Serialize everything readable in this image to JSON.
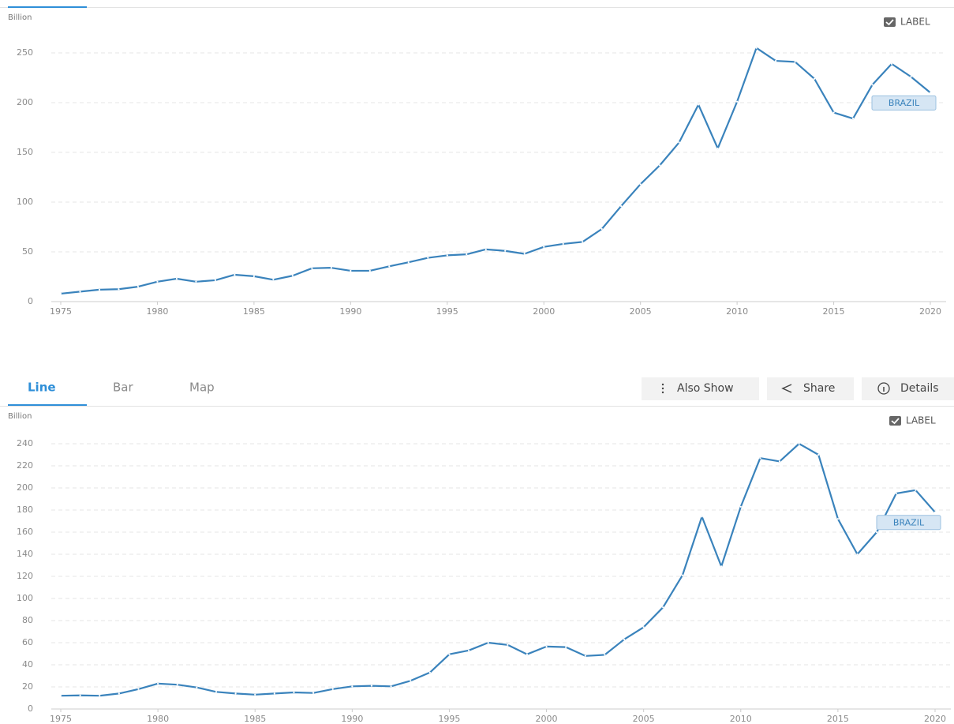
{
  "tabs": [
    "Line",
    "Bar",
    "Map"
  ],
  "buttons": [
    "Also Show",
    "Share",
    "Details"
  ],
  "chart_data": [
    {
      "type": "line",
      "y_label": "Billion",
      "legend_label": "LABEL",
      "x": [
        1975,
        1976,
        1977,
        1978,
        1979,
        1980,
        1981,
        1982,
        1983,
        1984,
        1985,
        1986,
        1987,
        1988,
        1989,
        1990,
        1991,
        1992,
        1993,
        1994,
        1995,
        1996,
        1997,
        1998,
        1999,
        2000,
        2001,
        2002,
        2003,
        2004,
        2005,
        2006,
        2007,
        2008,
        2009,
        2010,
        2011,
        2012,
        2013,
        2014,
        2015,
        2016,
        2017,
        2018,
        2019,
        2020
      ],
      "series": [
        {
          "name": "BRAZIL",
          "color": "#3a83bc",
          "values": [
            8,
            10,
            12,
            12.5,
            15,
            20,
            23,
            20,
            21.5,
            27,
            25.5,
            22,
            26,
            33.5,
            34,
            31,
            31,
            35.5,
            39.5,
            44,
            46.5,
            47.5,
            52.5,
            51,
            48,
            55,
            58,
            60,
            73,
            96,
            118,
            137,
            160,
            198,
            154,
            201,
            255,
            242,
            241,
            224,
            190,
            184,
            218,
            239,
            226,
            210
          ]
        }
      ],
      "xlim": [
        1975,
        2020
      ],
      "xticks": [
        1975,
        1980,
        1985,
        1990,
        1995,
        2000,
        2005,
        2010,
        2015,
        2020
      ],
      "ylim": [
        0,
        250
      ],
      "yticks": [
        0,
        50,
        100,
        150,
        200,
        250
      ],
      "grid": true
    },
    {
      "type": "line",
      "y_label": "Billion",
      "legend_label": "LABEL",
      "x": [
        1975,
        1976,
        1977,
        1978,
        1979,
        1980,
        1981,
        1982,
        1983,
        1984,
        1985,
        1986,
        1987,
        1988,
        1989,
        1990,
        1991,
        1992,
        1993,
        1994,
        1995,
        1996,
        1997,
        1998,
        1999,
        2000,
        2001,
        2002,
        2003,
        2004,
        2005,
        2006,
        2007,
        2008,
        2009,
        2010,
        2011,
        2012,
        2013,
        2014,
        2015,
        2016,
        2017,
        2018,
        2019,
        2020
      ],
      "series": [
        {
          "name": "BRAZIL",
          "color": "#3a83bc",
          "values": [
            12,
            12.3,
            12,
            14,
            18,
            23,
            22,
            19.5,
            15.5,
            14,
            13,
            14,
            15,
            14.5,
            18,
            20.5,
            21,
            20.5,
            25.5,
            33,
            49.5,
            53,
            60,
            58,
            49.5,
            56.5,
            56,
            48,
            49,
            63,
            74,
            92,
            121,
            174,
            129,
            183,
            227,
            224,
            240,
            230,
            172,
            140,
            160,
            195,
            198,
            178
          ]
        }
      ],
      "xlim": [
        1975,
        2020
      ],
      "xticks": [
        1975,
        1980,
        1985,
        1990,
        1995,
        2000,
        2005,
        2010,
        2015,
        2020
      ],
      "ylim": [
        0,
        240
      ],
      "yticks": [
        0,
        20,
        40,
        60,
        80,
        100,
        120,
        140,
        160,
        180,
        200,
        220,
        240
      ],
      "grid": true
    }
  ]
}
